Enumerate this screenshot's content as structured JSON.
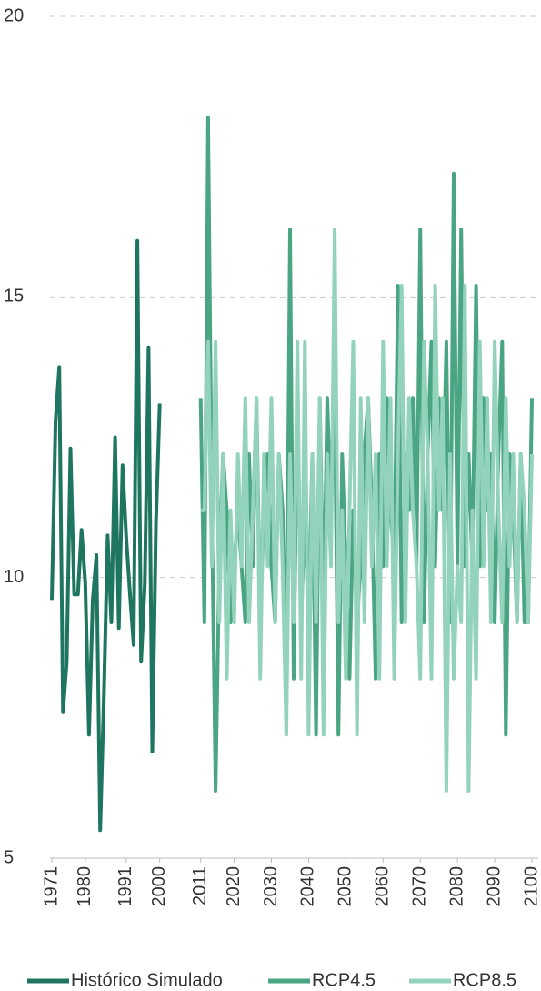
{
  "chart_data": {
    "type": "line",
    "x": [
      1971,
      1972,
      1973,
      1974,
      1975,
      1976,
      1977,
      1978,
      1979,
      1980,
      1981,
      1982,
      1983,
      1984,
      1985,
      1986,
      1987,
      1988,
      1989,
      1990,
      1991,
      1992,
      1993,
      1994,
      1995,
      1996,
      1997,
      1998,
      1999,
      2000,
      2011,
      2012,
      2013,
      2014,
      2015,
      2016,
      2017,
      2018,
      2019,
      2020,
      2021,
      2022,
      2023,
      2024,
      2025,
      2026,
      2027,
      2028,
      2029,
      2030,
      2031,
      2032,
      2033,
      2034,
      2035,
      2036,
      2037,
      2038,
      2039,
      2040,
      2041,
      2042,
      2043,
      2044,
      2045,
      2046,
      2047,
      2048,
      2049,
      2050,
      2051,
      2052,
      2053,
      2054,
      2055,
      2056,
      2057,
      2058,
      2059,
      2060,
      2061,
      2062,
      2063,
      2064,
      2065,
      2066,
      2067,
      2068,
      2069,
      2070,
      2071,
      2072,
      2073,
      2074,
      2075,
      2076,
      2077,
      2078,
      2079,
      2080,
      2081,
      2082,
      2083,
      2084,
      2085,
      2086,
      2087,
      2088,
      2089,
      2090,
      2091,
      2092,
      2093,
      2094,
      2095,
      2096,
      2097,
      2098,
      2099,
      2100
    ],
    "series": [
      {
        "name": "Histórico Simulado",
        "color": "#1e7560",
        "values": [
          9.6,
          12.8,
          13.75,
          7.6,
          8.5,
          12.3,
          9.7,
          9.7,
          10.85,
          9.9,
          7.2,
          9.6,
          10.4,
          5.5,
          7.9,
          10.75,
          9.2,
          12.5,
          9.1,
          12.0,
          10.7,
          9.7,
          8.8,
          16.0,
          8.5,
          9.9,
          14.1,
          6.9,
          11.0,
          13.1,
          null,
          null,
          null,
          null,
          null,
          null,
          null,
          null,
          null,
          null,
          null,
          null,
          null,
          null,
          null,
          null,
          null,
          null,
          null,
          null,
          null,
          null,
          null,
          null,
          null,
          null,
          null,
          null,
          null,
          null,
          null,
          null,
          null,
          null,
          null,
          null,
          null,
          null,
          null,
          null,
          null,
          null,
          null,
          null,
          null,
          null,
          null,
          null,
          null,
          null,
          null,
          null,
          null,
          null,
          null,
          null,
          null,
          null,
          null,
          null,
          null,
          null,
          null,
          null,
          null,
          null,
          null,
          null,
          null,
          null,
          null,
          null,
          null,
          null,
          null,
          null,
          null,
          null,
          null,
          null,
          null,
          null,
          null,
          null,
          null,
          null,
          null,
          null,
          null,
          null
        ]
      },
      {
        "name": "RCP4.5",
        "color": "#4aa583",
        "values": [
          null,
          null,
          null,
          null,
          null,
          null,
          null,
          null,
          null,
          null,
          null,
          null,
          null,
          null,
          null,
          null,
          null,
          null,
          null,
          null,
          null,
          null,
          null,
          null,
          null,
          null,
          null,
          null,
          null,
          null,
          13.2,
          9.2,
          18.2,
          11.2,
          6.2,
          10.2,
          12.2,
          11.2,
          9.2,
          10.2,
          11.2,
          10.2,
          9.2,
          12.2,
          10.2,
          13.2,
          9.2,
          11.2,
          12.2,
          10.2,
          9.2,
          12.2,
          11.2,
          8.2,
          16.2,
          8.2,
          13.2,
          9.2,
          11.2,
          9.2,
          12.2,
          7.2,
          13.2,
          9.2,
          13.2,
          11.2,
          13.2,
          7.2,
          12.2,
          10.2,
          8.2,
          11.2,
          9.2,
          10.2,
          12.2,
          13.2,
          11.2,
          8.2,
          12.2,
          10.2,
          13.2,
          11.2,
          10.2,
          15.2,
          9.2,
          12.2,
          11.2,
          13.2,
          10.2,
          16.2,
          9.2,
          12.2,
          14.2,
          10.2,
          13.2,
          11.2,
          14.2,
          9.2,
          17.2,
          10.2,
          16.2,
          10.2,
          12.2,
          10.2,
          15.2,
          10.2,
          13.2,
          11.2,
          12.2,
          9.2,
          12.2,
          14.2,
          7.2,
          12.2,
          11.2,
          9.2,
          12.2,
          9.2,
          9.2,
          13.2
        ]
      },
      {
        "name": "RCP8.5",
        "color": "#93d3bb",
        "values": [
          null,
          null,
          null,
          null,
          null,
          null,
          null,
          null,
          null,
          null,
          null,
          null,
          null,
          null,
          null,
          null,
          null,
          null,
          null,
          null,
          null,
          null,
          null,
          null,
          null,
          null,
          null,
          null,
          null,
          null,
          11.2,
          11.2,
          14.2,
          10.2,
          14.2,
          9.2,
          12.2,
          8.2,
          11.2,
          9.2,
          12.2,
          10.2,
          13.2,
          9.2,
          11.2,
          13.2,
          8.2,
          12.2,
          10.2,
          13.2,
          9.2,
          12.2,
          10.2,
          7.2,
          12.2,
          9.2,
          14.2,
          8.2,
          14.2,
          7.2,
          12.2,
          9.2,
          13.2,
          7.2,
          12.2,
          10.2,
          16.2,
          9.2,
          11.2,
          8.2,
          11.2,
          14.2,
          7.2,
          13.2,
          9.2,
          13.2,
          10.2,
          12.2,
          8.2,
          14.2,
          10.2,
          13.2,
          8.2,
          12.2,
          15.2,
          9.2,
          13.2,
          11.2,
          10.2,
          8.2,
          14.2,
          12.2,
          8.2,
          15.2,
          11.2,
          13.2,
          6.2,
          12.2,
          8.2,
          10.2,
          9.2,
          15.2,
          6.2,
          11.2,
          8.2,
          14.2,
          10.2,
          13.2,
          9.2,
          14.2,
          11.2,
          9.2,
          13.2,
          10.2,
          12.2,
          9.2,
          12.2,
          11.2,
          9.2,
          12.2
        ]
      }
    ],
    "xlim": [
      1971,
      2100
    ],
    "xticks": [
      1971,
      1980,
      1991,
      2000,
      2011,
      2020,
      2030,
      2040,
      2050,
      2060,
      2070,
      2080,
      2090,
      2100
    ],
    "ylim": [
      5,
      20
    ],
    "yticks": [
      5,
      10,
      15,
      20
    ],
    "grid": true,
    "legend": "bottom"
  }
}
